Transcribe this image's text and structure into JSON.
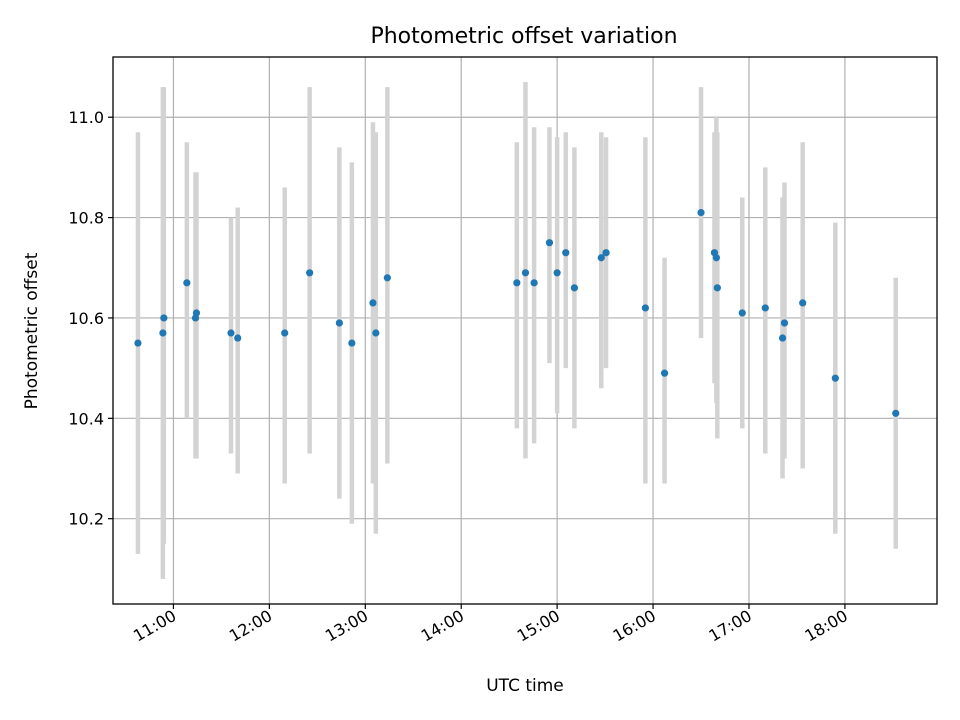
{
  "chart_data": {
    "type": "scatter",
    "title": "Photometric offset variation",
    "xlabel": "UTC time",
    "ylabel": "Photometric offset",
    "xlim": [
      10.37,
      18.96
    ],
    "ylim": [
      10.03,
      11.12
    ],
    "grid": true,
    "x_ticks": [
      {
        "value": 11,
        "label": "11:00"
      },
      {
        "value": 12,
        "label": "12:00"
      },
      {
        "value": 13,
        "label": "13:00"
      },
      {
        "value": 14,
        "label": "14:00"
      },
      {
        "value": 15,
        "label": "15:00"
      },
      {
        "value": 16,
        "label": "16:00"
      },
      {
        "value": 17,
        "label": "17:00"
      },
      {
        "value": 18,
        "label": "18:00"
      }
    ],
    "y_ticks": [
      {
        "value": 10.2,
        "label": "10.2"
      },
      {
        "value": 10.4,
        "label": "10.4"
      },
      {
        "value": 10.6,
        "label": "10.6"
      },
      {
        "value": 10.8,
        "label": "10.8"
      },
      {
        "value": 11.0,
        "label": "11.0"
      }
    ],
    "series": [
      {
        "name": "offset",
        "color": "#1f77b4",
        "errorbar_color": "#d3d3d3",
        "points": [
          {
            "x": 10.63,
            "y": 10.55,
            "err_low": 10.13,
            "err_high": 10.97
          },
          {
            "x": 10.89,
            "y": 10.57,
            "err_low": 10.08,
            "err_high": 11.06
          },
          {
            "x": 10.9,
            "y": 10.6,
            "err_low": 10.15,
            "err_high": 11.06
          },
          {
            "x": 11.14,
            "y": 10.67,
            "err_low": 10.4,
            "err_high": 10.95
          },
          {
            "x": 11.23,
            "y": 10.6,
            "err_low": 10.32,
            "err_high": 10.89
          },
          {
            "x": 11.24,
            "y": 10.61,
            "err_low": 10.32,
            "err_high": 10.89
          },
          {
            "x": 11.6,
            "y": 10.57,
            "err_low": 10.33,
            "err_high": 10.8
          },
          {
            "x": 11.67,
            "y": 10.56,
            "err_low": 10.29,
            "err_high": 10.82
          },
          {
            "x": 12.16,
            "y": 10.57,
            "err_low": 10.27,
            "err_high": 10.86
          },
          {
            "x": 12.42,
            "y": 10.69,
            "err_low": 10.33,
            "err_high": 11.06
          },
          {
            "x": 12.73,
            "y": 10.59,
            "err_low": 10.24,
            "err_high": 10.94
          },
          {
            "x": 12.86,
            "y": 10.55,
            "err_low": 10.19,
            "err_high": 10.91
          },
          {
            "x": 13.08,
            "y": 10.63,
            "err_low": 10.27,
            "err_high": 10.99
          },
          {
            "x": 13.11,
            "y": 10.57,
            "err_low": 10.17,
            "err_high": 10.97
          },
          {
            "x": 13.23,
            "y": 10.68,
            "err_low": 10.31,
            "err_high": 11.06
          },
          {
            "x": 14.58,
            "y": 10.67,
            "err_low": 10.38,
            "err_high": 10.95
          },
          {
            "x": 14.67,
            "y": 10.69,
            "err_low": 10.32,
            "err_high": 11.07
          },
          {
            "x": 14.76,
            "y": 10.67,
            "err_low": 10.35,
            "err_high": 10.98
          },
          {
            "x": 14.92,
            "y": 10.75,
            "err_low": 10.51,
            "err_high": 10.98
          },
          {
            "x": 15.0,
            "y": 10.69,
            "err_low": 10.41,
            "err_high": 10.96
          },
          {
            "x": 15.09,
            "y": 10.73,
            "err_low": 10.5,
            "err_high": 10.97
          },
          {
            "x": 15.18,
            "y": 10.66,
            "err_low": 10.38,
            "err_high": 10.94
          },
          {
            "x": 15.46,
            "y": 10.72,
            "err_low": 10.46,
            "err_high": 10.97
          },
          {
            "x": 15.51,
            "y": 10.73,
            "err_low": 10.5,
            "err_high": 10.96
          },
          {
            "x": 15.92,
            "y": 10.62,
            "err_low": 10.27,
            "err_high": 10.96
          },
          {
            "x": 16.12,
            "y": 10.49,
            "err_low": 10.27,
            "err_high": 10.72
          },
          {
            "x": 16.5,
            "y": 10.81,
            "err_low": 10.56,
            "err_high": 11.06
          },
          {
            "x": 16.64,
            "y": 10.73,
            "err_low": 10.47,
            "err_high": 10.97
          },
          {
            "x": 16.66,
            "y": 10.72,
            "err_low": 10.43,
            "err_high": 11.0
          },
          {
            "x": 16.67,
            "y": 10.66,
            "err_low": 10.36,
            "err_high": 10.97
          },
          {
            "x": 16.93,
            "y": 10.61,
            "err_low": 10.38,
            "err_high": 10.84
          },
          {
            "x": 17.17,
            "y": 10.62,
            "err_low": 10.33,
            "err_high": 10.9
          },
          {
            "x": 17.35,
            "y": 10.56,
            "err_low": 10.28,
            "err_high": 10.84
          },
          {
            "x": 17.37,
            "y": 10.59,
            "err_low": 10.32,
            "err_high": 10.87
          },
          {
            "x": 17.56,
            "y": 10.63,
            "err_low": 10.3,
            "err_high": 10.95
          },
          {
            "x": 17.9,
            "y": 10.48,
            "err_low": 10.17,
            "err_high": 10.79
          },
          {
            "x": 18.53,
            "y": 10.41,
            "err_low": 10.14,
            "err_high": 10.68
          }
        ]
      }
    ]
  }
}
